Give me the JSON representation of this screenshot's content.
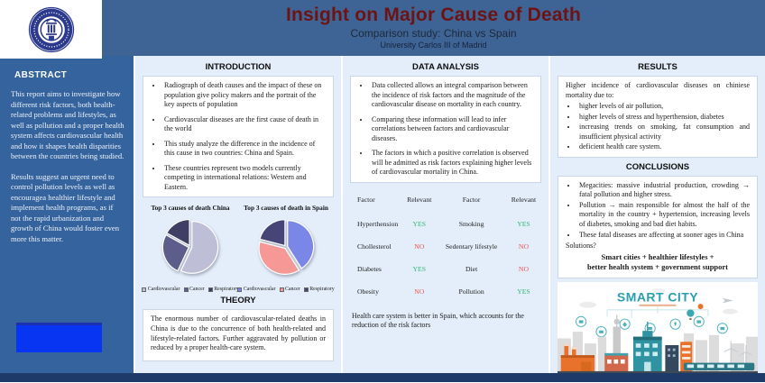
{
  "header": {
    "title": "Insight on Major Cause of Death",
    "subtitle": "Comparison study: China vs Spain",
    "institution": "University Carlos III of Madrid",
    "logo": "universidad-carlos-iii-de-madrid-seal"
  },
  "abstract": {
    "heading": "ABSTRACT",
    "paragraphs": [
      "This report aims to investigate how different risk factors, both health-related problems and lifestyles, as well as pollution and a proper health system affects cardiovascular health and how it shapes health disparities between the countries being studied.",
      "Results suggest an urgent need to control pollution levels as well as encouragea healthier lifestyle and implement health programs, as if not the rapid urbanization and growth of China would foster even more this matter."
    ]
  },
  "introduction": {
    "heading": "INTRODUCTION",
    "bullets": [
      "Radiograph of death causes and the impact of these on population give policy makers and the portrait of the key aspects of population",
      "Cardiovascular diseases are the first cause of death in the world",
      "This study analyze the difference in the incidence of this cause in two countries: China and Spain.",
      "These countries represent two models currently competing in international relations: Western and Eastern."
    ]
  },
  "chart_data": [
    {
      "type": "pie",
      "title": "Top 3 causes of death China",
      "labels": [
        "Cardiovascular",
        "Cancer",
        "Respiratory"
      ],
      "values": [
        57,
        26,
        17
      ],
      "colors": [
        "#bebed6",
        "#5d5d8c",
        "#3f3f66"
      ],
      "legend_position": "bottom"
    },
    {
      "type": "pie",
      "title": "Top 3 causes of death in Spain",
      "labels": [
        "Cardiovascular",
        "Cancer",
        "Respiratory"
      ],
      "values": [
        41,
        38,
        21
      ],
      "colors": [
        "#7b87e6",
        "#f59896",
        "#474577"
      ],
      "legend_position": "bottom"
    }
  ],
  "theory": {
    "heading": "THEORY",
    "text": "The enormous number of cardiovascular-related deaths in China is due to the concurrence of both health-related and lifestyle-related factors. Further aggravated by pollution or reduced by a proper health-care system."
  },
  "data_analysis": {
    "heading": "DATA ANALYSIS",
    "bullets": [
      "Data collected allows an integral comparison between the incidence of risk factors and the magnitude of the cardiovascular disease on mortality in each country.",
      "Comparing these information will lead to infer correlations between factors and cardiovascular diseases.",
      "The factors in which a positive correlation is observed will be admitted as risk factors explaining higher levels of cardiovascular mortality in China."
    ],
    "note": "Health care system is better in Spain, which accounts for the reduction of the risk factors"
  },
  "factor_table": {
    "headers": [
      "Factor",
      "Relevant",
      "Factor",
      "Relevant"
    ],
    "rows": [
      {
        "f1": "Hyperthension",
        "r1": "YES",
        "f2": "Smoking",
        "r2": "YES"
      },
      {
        "f1": "Chollesterol",
        "r1": "NO",
        "f2": "Sedentary lifestyle",
        "r2": "NO"
      },
      {
        "f1": "Diabetes",
        "r1": "YES",
        "f2": "Diet",
        "r2": "NO"
      },
      {
        "f1": "Obesity",
        "r1": "NO",
        "f2": "Pollution",
        "r2": "YES"
      }
    ],
    "yes_color": "#2eb872",
    "no_color": "#ef5350"
  },
  "results": {
    "heading": "RESULTS",
    "intro": "Higher incidence of cardiovascular diseases on chiniese mortality due to:",
    "bullets": [
      "higher levels of air pollution,",
      "higher levels of stress and hyperthension, diabetes",
      "increasing trends on smoking, fat consumption and insufficient physical activity",
      "deficient health care system."
    ]
  },
  "conclusions": {
    "heading": "CONCLUSIONS",
    "bullets": [
      "Megacities: massive industrial production, crowding → fatal pollution and higher stress.",
      "Pollution →  main responsible for almost the half of the mortality in the country + hypertension,  increasing levels of diabetes, smoking and bad diet habits.",
      "These fatal diseases are affecting at sooner ages in China"
    ],
    "solutions_label": "Solutions?",
    "solution_line1": "Smart cities + healthier lifestyles +",
    "solution_line2": "better health system + government support"
  },
  "smart_city": {
    "title": "SMART CITY"
  },
  "colors": {
    "header_bg": "#3e6496",
    "abstract_bg": "#35639d",
    "column_bg": "#e4eefa",
    "footer_bg": "#1e3a68",
    "title_color": "#6d1313",
    "highlight_box": "#0835f2",
    "smart_city_teal": "#2a9fb0",
    "smart_city_orange": "#e8722b"
  }
}
